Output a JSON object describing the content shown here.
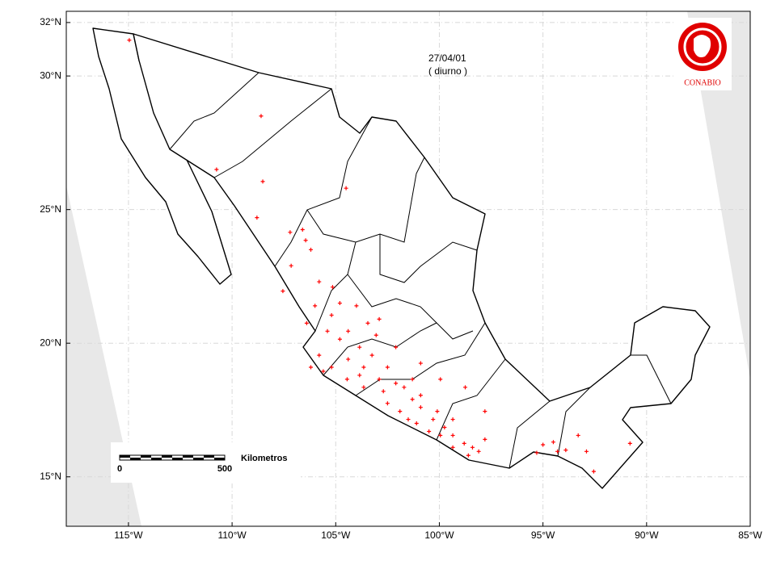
{
  "chart_data": {
    "type": "map",
    "date_label": "27/04/01",
    "period_label": "( diurno )",
    "logo_text": "CONABIO",
    "scale_bar": {
      "label": "Kilometros",
      "start": "0",
      "end": "500"
    },
    "xlim": [
      -118,
      -85
    ],
    "ylim": [
      13.15,
      32.42
    ],
    "xticks": [
      {
        "value": -115,
        "label": "115°W"
      },
      {
        "value": -110,
        "label": "110°W"
      },
      {
        "value": -105,
        "label": "105°W"
      },
      {
        "value": -100,
        "label": "100°W"
      },
      {
        "value": -95,
        "label": "95°W"
      },
      {
        "value": -90,
        "label": "90°W"
      },
      {
        "value": -85,
        "label": "85°W"
      }
    ],
    "yticks": [
      {
        "value": 15,
        "label": "15°N"
      },
      {
        "value": 20,
        "label": "20°N"
      },
      {
        "value": 25,
        "label": "25°N"
      },
      {
        "value": 30,
        "label": "30°N"
      },
      {
        "value": 32,
        "label": "32°N"
      }
    ],
    "grid": true,
    "color": "#ff0000",
    "lon": [
      -114.96,
      -108.6,
      -110.75,
      -108.52,
      -108.8,
      -104.5,
      -107.2,
      -106.45,
      -106.2,
      -107.15,
      -105.8,
      -105.15,
      -106.0,
      -105.2,
      -104.8,
      -104.0,
      -105.4,
      -104.8,
      -105.8,
      -105.2,
      -104.4,
      -103.85,
      -103.25,
      -103.05,
      -103.85,
      -102.9,
      -102.5,
      -102.1,
      -101.7,
      -101.3,
      -100.9,
      -102.5,
      -101.9,
      -101.5,
      -101.1,
      -100.5,
      -99.95,
      -100.9,
      -100.1,
      -99.35,
      -98.8,
      -98.4,
      -98.1,
      -98.6,
      -97.8,
      -99.35,
      -99.75,
      -97.8,
      -100.9,
      -99.95,
      -103.65,
      -104.45,
      -102.1,
      -102.9,
      -103.45,
      -105.6,
      -106.4,
      -107.55,
      -95.0,
      -94.5,
      -94.3,
      -93.9,
      -93.3,
      -92.9,
      -90.8,
      -92.55,
      -95.3,
      -106.6,
      -106.2,
      -104.4,
      -103.65,
      -102.7,
      -101.3,
      -100.3,
      -99.35,
      -98.75
    ],
    "lat": [
      31.34,
      28.5,
      26.5,
      26.05,
      24.7,
      25.8,
      24.15,
      23.85,
      23.5,
      22.9,
      22.3,
      22.1,
      21.4,
      21.05,
      21.5,
      21.4,
      20.45,
      20.15,
      19.55,
      19.1,
      19.4,
      19.85,
      19.55,
      20.3,
      18.8,
      18.65,
      19.1,
      18.5,
      18.35,
      18.65,
      18.05,
      17.75,
      17.45,
      17.15,
      17.0,
      16.7,
      16.55,
      17.6,
      17.45,
      17.15,
      16.25,
      16.1,
      15.95,
      15.8,
      16.4,
      16.1,
      16.85,
      17.45,
      19.25,
      18.65,
      18.35,
      18.65,
      19.85,
      20.9,
      20.75,
      18.95,
      20.75,
      21.95,
      16.2,
      16.3,
      15.95,
      16.0,
      16.55,
      15.95,
      16.25,
      15.2,
      15.9,
      24.25,
      19.1,
      20.45,
      19.1,
      18.2,
      17.9,
      17.15,
      16.55,
      18.35
    ]
  }
}
